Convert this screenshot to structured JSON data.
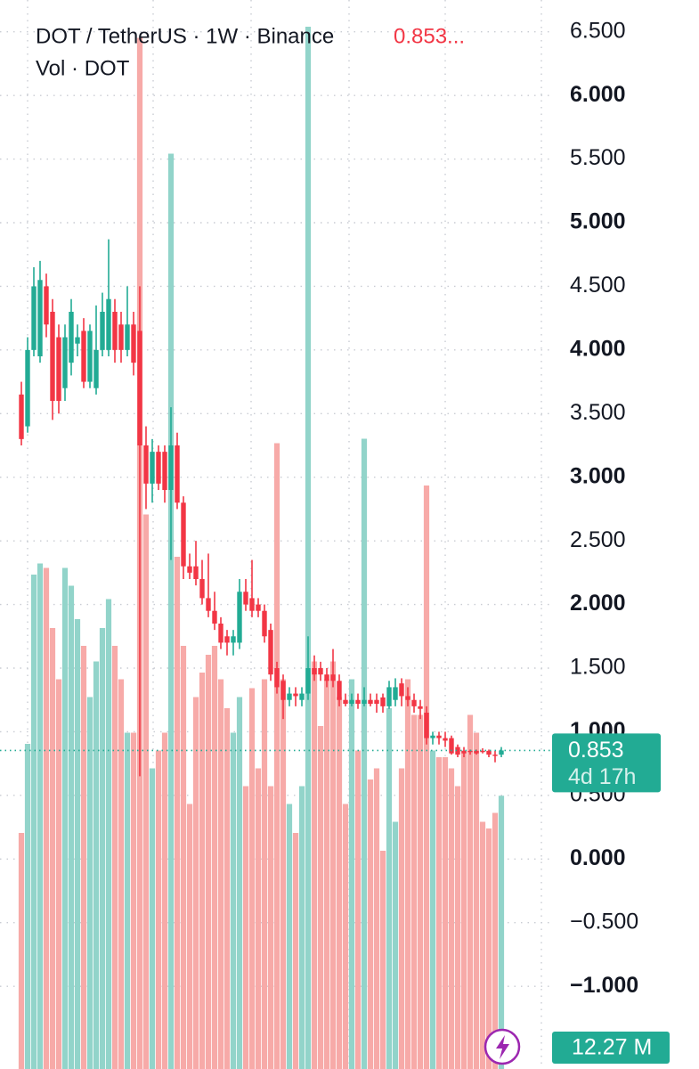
{
  "chart_data": {
    "type": "candlestick",
    "title": "DOT / TetherUS · 1W · Binance",
    "last_price_label": "0.853...",
    "volume_title": "Vol · DOT",
    "last_close_label": "0.853",
    "countdown": "4d 17h",
    "volume_label": "12.27 M",
    "up_color": "#22ab94",
    "down_color": "#f23645",
    "up_volume_color": "#92d4ca",
    "down_volume_color": "#f7aaa8",
    "ylim": [
      -1.65,
      6.75
    ],
    "volume_ylim": [
      0,
      48
    ],
    "yticks": [
      {
        "value": 6.5,
        "label": "6.500"
      },
      {
        "value": 6,
        "label": "6.000"
      },
      {
        "value": 5.5,
        "label": "5.500"
      },
      {
        "value": 5,
        "label": "5.000"
      },
      {
        "value": 4.5,
        "label": "4.500"
      },
      {
        "value": 4,
        "label": "4.000"
      },
      {
        "value": 3.5,
        "label": "3.500"
      },
      {
        "value": 3,
        "label": "3.000"
      },
      {
        "value": 2.5,
        "label": "2.500"
      },
      {
        "value": 2,
        "label": "2.000"
      },
      {
        "value": 1.5,
        "label": "1.500"
      },
      {
        "value": 1,
        "label": "1.000"
      },
      {
        "value": 0.5,
        "label": "0.500"
      },
      {
        "value": 0,
        "label": "0.000"
      },
      {
        "value": -0.5,
        "label": "−0.500"
      },
      {
        "value": -1,
        "label": "−1.000"
      }
    ],
    "grid": true,
    "open": [
      3.65,
      3.4,
      4.0,
      3.95,
      4.5,
      4.3,
      4.1,
      3.7,
      3.9,
      4.05,
      4.15,
      3.75,
      3.7,
      4.0,
      4.0,
      4.3,
      4.2,
      4.0,
      4.2,
      4.15,
      3.25,
      2.95,
      3.2,
      3.2,
      2.9,
      3.25,
      2.8,
      2.3,
      2.3,
      2.2,
      2.05,
      1.95,
      1.85,
      1.75,
      1.7,
      1.7,
      2.1,
      2.05,
      2.0,
      1.95,
      1.8,
      1.5,
      1.4,
      1.25,
      1.3,
      1.25,
      1.3,
      1.5,
      1.5,
      1.45,
      1.45,
      1.4,
      1.25,
      1.22,
      1.25,
      1.22,
      1.25,
      1.25,
      1.27,
      1.2,
      1.25,
      1.38,
      1.28,
      1.25,
      1.2,
      1.15,
      0.95,
      0.97,
      0.95,
      0.95,
      0.88,
      0.85,
      0.85,
      0.85,
      0.85,
      0.85,
      0.82,
      0.82
    ],
    "high": [
      3.75,
      4.1,
      4.65,
      4.7,
      4.6,
      4.4,
      4.2,
      4.2,
      4.4,
      4.2,
      4.25,
      4.2,
      4.35,
      4.45,
      4.87,
      4.4,
      4.3,
      4.5,
      4.3,
      4.5,
      3.4,
      3.3,
      3.25,
      3.25,
      3.55,
      3.35,
      2.85,
      2.4,
      2.5,
      2.35,
      2.4,
      2.1,
      1.9,
      1.8,
      1.8,
      2.2,
      2.2,
      2.35,
      2.05,
      2.0,
      1.85,
      1.55,
      1.45,
      1.35,
      1.35,
      1.35,
      1.75,
      1.6,
      1.55,
      1.5,
      1.65,
      1.45,
      1.3,
      1.3,
      1.3,
      1.35,
      1.3,
      1.3,
      1.3,
      1.4,
      1.42,
      1.42,
      1.35,
      1.3,
      1.25,
      1.2,
      1.0,
      1.0,
      1.0,
      0.97,
      0.9,
      0.88,
      0.86,
      0.86,
      0.87,
      0.86,
      0.85,
      0.88
    ],
    "low": [
      3.25,
      3.35,
      3.95,
      3.9,
      4.1,
      3.45,
      3.5,
      3.6,
      3.8,
      3.95,
      3.7,
      3.7,
      3.65,
      3.95,
      3.95,
      3.9,
      3.9,
      3.95,
      3.8,
      0.65,
      2.75,
      2.8,
      2.9,
      2.8,
      2.35,
      2.75,
      2.2,
      2.2,
      2.15,
      2.0,
      1.9,
      1.8,
      1.65,
      1.6,
      1.6,
      1.65,
      1.95,
      1.9,
      1.9,
      1.7,
      1.4,
      1.3,
      1.1,
      1.2,
      1.2,
      1.2,
      1.25,
      1.4,
      1.4,
      1.35,
      1.35,
      1.2,
      1.2,
      1.2,
      1.18,
      1.2,
      1.2,
      1.15,
      1.15,
      1.18,
      1.2,
      1.2,
      1.2,
      1.15,
      1.1,
      0.9,
      0.9,
      0.9,
      0.88,
      0.82,
      0.8,
      0.8,
      0.82,
      0.82,
      0.83,
      0.8,
      0.76,
      0.8
    ],
    "close": [
      3.3,
      4.0,
      4.5,
      4.55,
      4.2,
      3.6,
      3.6,
      4.1,
      4.3,
      4.1,
      3.75,
      4.15,
      4.0,
      4.3,
      4.4,
      4.0,
      4.0,
      4.2,
      3.9,
      3.25,
      2.95,
      3.2,
      2.95,
      2.9,
      3.25,
      2.8,
      2.3,
      2.25,
      2.2,
      2.05,
      1.95,
      1.85,
      1.7,
      1.7,
      1.75,
      2.1,
      2.0,
      1.95,
      1.95,
      1.75,
      1.45,
      1.35,
      1.25,
      1.3,
      1.28,
      1.3,
      1.5,
      1.45,
      1.45,
      1.4,
      1.4,
      1.25,
      1.22,
      1.25,
      1.22,
      1.25,
      1.22,
      1.22,
      1.2,
      1.35,
      1.35,
      1.28,
      1.25,
      1.2,
      1.18,
      0.95,
      0.97,
      0.95,
      0.93,
      0.83,
      0.82,
      0.83,
      0.84,
      0.83,
      0.84,
      0.82,
      0.81,
      0.853
    ],
    "volume": [
      10.6,
      14.6,
      22.2,
      22.7,
      22.5,
      19.8,
      17.5,
      22.5,
      21.7,
      20.2,
      19.0,
      16.7,
      18.3,
      19.8,
      21.1,
      19.0,
      17.5,
      15.1,
      15.1,
      46.3,
      24.9,
      13.5,
      14.3,
      15.1,
      41.1,
      23.0,
      19.0,
      11.9,
      16.7,
      17.8,
      18.6,
      19.0,
      17.5,
      16.2,
      15.1,
      16.7,
      12.7,
      17.1,
      13.5,
      17.5,
      12.7,
      28.1,
      17.5,
      11.9,
      10.6,
      12.7,
      46.8,
      18.3,
      15.4,
      17.5,
      18.3,
      16.7,
      11.9,
      17.5,
      14.3,
      28.3,
      13.0,
      13.5,
      9.8,
      16.2,
      11.1,
      13.5,
      17.5,
      15.9,
      15.9,
      26.2,
      14.3,
      14.0,
      14.0,
      13.5,
      12.7,
      14.3,
      15.9,
      15.1,
      11.1,
      10.8,
      11.5,
      12.27
    ]
  }
}
